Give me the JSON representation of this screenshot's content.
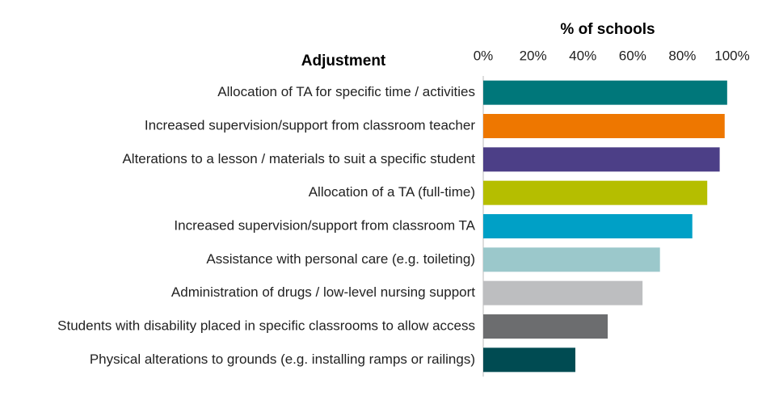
{
  "chart_data": {
    "type": "bar",
    "orientation": "horizontal",
    "title": "% of schools",
    "category_axis_title": "Adjustment",
    "categories": [
      "Allocation of TA for specific time / activities",
      "Increased supervision/support from classroom teacher",
      "Alterations to a lesson / materials to suit a specific student",
      "Allocation of a TA (full-time)",
      "Increased supervision/support from classroom TA",
      "Assistance with personal care (e.g. toileting)",
      "Administration of drugs / low-level nursing support",
      "Students with disability placed in specific classrooms to allow access",
      "Physical alterations to grounds (e.g. installing ramps or railings)"
    ],
    "values": [
      98,
      97,
      95,
      90,
      84,
      71,
      64,
      50,
      37
    ],
    "colors": [
      "#00777a",
      "#ee7700",
      "#4c3f87",
      "#b5be00",
      "#00a0c6",
      "#9bc8cb",
      "#bdbec0",
      "#6c6d6f",
      "#004b52"
    ],
    "xlim": [
      0,
      100
    ],
    "xticks": [
      {
        "value": 0,
        "label": "0%"
      },
      {
        "value": 20,
        "label": "20%"
      },
      {
        "value": 40,
        "label": "40%"
      },
      {
        "value": 60,
        "label": "60%"
      },
      {
        "value": 80,
        "label": "80%"
      },
      {
        "value": 100,
        "label": "100%"
      }
    ]
  }
}
